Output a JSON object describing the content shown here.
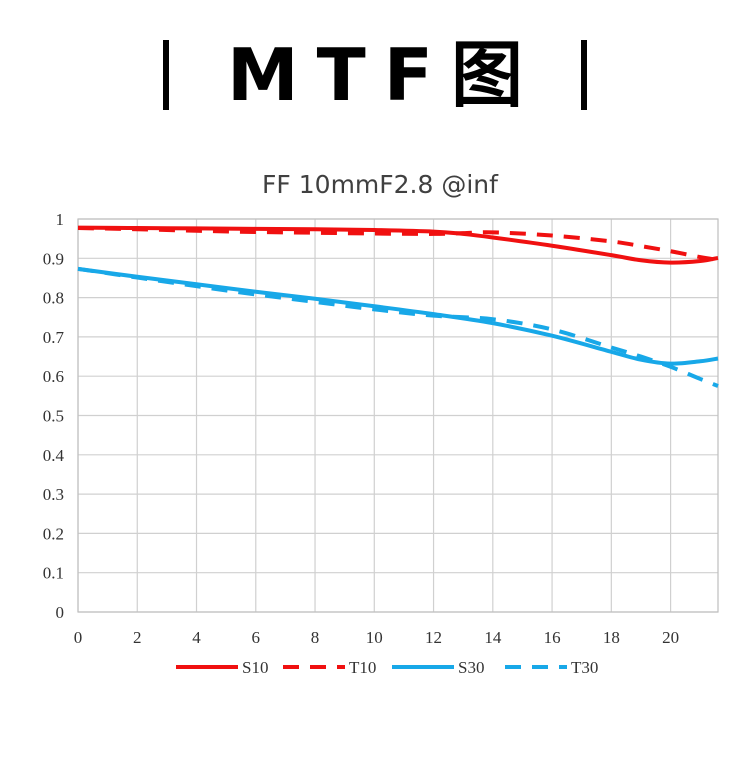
{
  "heading": {
    "text": "MTF图"
  },
  "chart_data": {
    "type": "line",
    "title": "FF 10mmF2.8 @inf",
    "xlabel": "",
    "ylabel": "",
    "xlim": [
      0,
      21.6
    ],
    "ylim": [
      0,
      1
    ],
    "x_ticks": [
      0,
      2,
      4,
      6,
      8,
      10,
      12,
      14,
      16,
      18,
      20
    ],
    "y_ticks": [
      0,
      0.1,
      0.2,
      0.3,
      0.4,
      0.5,
      0.6,
      0.7,
      0.8,
      0.9,
      1
    ],
    "x_tick_labels": [
      "0",
      "2",
      "4",
      "6",
      "8",
      "10",
      "12",
      "14",
      "16",
      "18",
      "20"
    ],
    "y_tick_labels": [
      "0",
      "0.1",
      "0.2",
      "0.3",
      "0.4",
      "0.5",
      "0.6",
      "0.7",
      "0.8",
      "0.9",
      "1"
    ],
    "grid": true,
    "legend_position": "bottom",
    "series": [
      {
        "name": "S10",
        "color": "#f01010",
        "style": "solid",
        "points": [
          [
            0,
            0.978
          ],
          [
            2,
            0.977
          ],
          [
            4,
            0.976
          ],
          [
            6,
            0.975
          ],
          [
            8,
            0.974
          ],
          [
            10,
            0.972
          ],
          [
            12,
            0.968
          ],
          [
            13,
            0.962
          ],
          [
            14,
            0.953
          ],
          [
            16,
            0.932
          ],
          [
            18,
            0.908
          ],
          [
            19,
            0.895
          ],
          [
            20,
            0.889
          ],
          [
            21,
            0.893
          ],
          [
            21.6,
            0.901
          ]
        ]
      },
      {
        "name": "T10",
        "color": "#f01010",
        "style": "dashed",
        "points": [
          [
            0,
            0.977
          ],
          [
            2,
            0.974
          ],
          [
            4,
            0.97
          ],
          [
            6,
            0.967
          ],
          [
            8,
            0.965
          ],
          [
            10,
            0.963
          ],
          [
            12,
            0.962
          ],
          [
            13,
            0.964
          ],
          [
            14,
            0.966
          ],
          [
            16,
            0.958
          ],
          [
            18,
            0.943
          ],
          [
            19,
            0.931
          ],
          [
            20,
            0.918
          ],
          [
            21,
            0.903
          ],
          [
            21.6,
            0.896
          ]
        ]
      },
      {
        "name": "S30",
        "color": "#18a8e8",
        "style": "solid",
        "points": [
          [
            0,
            0.873
          ],
          [
            2,
            0.853
          ],
          [
            4,
            0.834
          ],
          [
            6,
            0.815
          ],
          [
            8,
            0.797
          ],
          [
            10,
            0.778
          ],
          [
            12,
            0.758
          ],
          [
            14,
            0.735
          ],
          [
            16,
            0.703
          ],
          [
            18,
            0.662
          ],
          [
            19,
            0.642
          ],
          [
            20,
            0.632
          ],
          [
            21,
            0.638
          ],
          [
            21.6,
            0.645
          ]
        ]
      },
      {
        "name": "T30",
        "color": "#18a8e8",
        "style": "dashed",
        "points": [
          [
            0,
            0.873
          ],
          [
            2,
            0.851
          ],
          [
            4,
            0.829
          ],
          [
            6,
            0.808
          ],
          [
            8,
            0.789
          ],
          [
            10,
            0.77
          ],
          [
            12,
            0.754
          ],
          [
            14,
            0.745
          ],
          [
            16,
            0.719
          ],
          [
            18,
            0.673
          ],
          [
            19,
            0.65
          ],
          [
            20,
            0.624
          ],
          [
            21,
            0.593
          ],
          [
            21.6,
            0.575
          ]
        ]
      }
    ]
  }
}
